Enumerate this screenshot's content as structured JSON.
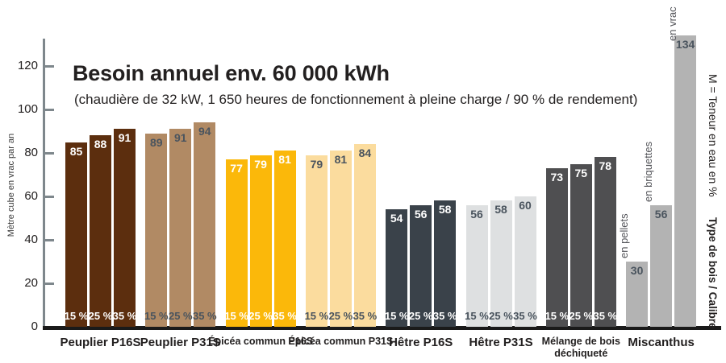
{
  "chart_data": {
    "type": "bar",
    "title": "Besoin annuel env. 60 000 kWh",
    "subtitle": "(chaudière de 32 kW, 1 650 heures de fonctionnement à pleine charge / 90 % de rendement)",
    "ylabel": "Mètre cube en vrac par an",
    "yticks": [
      0,
      20,
      40,
      60,
      80,
      100,
      120
    ],
    "ylim": [
      0,
      140
    ],
    "grid": false,
    "legend": "none",
    "moisture_series_labels": [
      "15 %",
      "25 %",
      "35 %"
    ],
    "groups": [
      {
        "label": "Peuplier P16S",
        "color": "#5C2E0E",
        "text_color": "#FFFFFF",
        "values": [
          85,
          88,
          91
        ],
        "bar_labels": [
          "15 %",
          "25 %",
          "35 %"
        ],
        "label_style": "bold"
      },
      {
        "label": "Peuplier P31S",
        "color": "#B18A64",
        "text_color": "#4A545E",
        "values": [
          89,
          91,
          94
        ],
        "bar_labels": [
          "15 %",
          "25 %",
          "35 %"
        ],
        "label_style": "bold"
      },
      {
        "label": "Épicéa commun P16S",
        "color": "#FBB80A",
        "text_color": "#FFFFFF",
        "values": [
          77,
          79,
          81
        ],
        "bar_labels": [
          "15 %",
          "25 %",
          "35 %"
        ],
        "label_style": "small"
      },
      {
        "label": "Épicéa commun P31S",
        "color": "#FBDC9E",
        "text_color": "#4A545E",
        "values": [
          79,
          81,
          84
        ],
        "bar_labels": [
          "15 %",
          "25 %",
          "35 %"
        ],
        "label_style": "small"
      },
      {
        "label": "Hêtre P16S",
        "color": "#3A424A",
        "text_color": "#FFFFFF",
        "values": [
          54,
          56,
          58
        ],
        "bar_labels": [
          "15 %",
          "25 %",
          "35 %"
        ],
        "label_style": "bold"
      },
      {
        "label": "Hêtre P31S",
        "color": "#DEE0E1",
        "text_color": "#4A545E",
        "values": [
          56,
          58,
          60
        ],
        "bar_labels": [
          "15 %",
          "25 %",
          "35 %"
        ],
        "label_style": "bold"
      },
      {
        "label": "Mélange de bois déchiqueté",
        "color": "#4F4F51",
        "text_color": "#FFFFFF",
        "values": [
          73,
          75,
          78
        ],
        "bar_labels": [
          "15 %",
          "25 %",
          "35 %"
        ],
        "label_style": "small wrap"
      },
      {
        "label": "Miscanthus",
        "color": "#B3B3B3",
        "text_color": "#4A545E",
        "values": [
          30,
          56,
          134
        ],
        "top_labels": [
          "en pellets",
          "en briquettes",
          "en vrac"
        ],
        "label_style": "bold"
      }
    ],
    "right_notes": {
      "moisture": "M = Teneur en eau en %",
      "type": "Type de bois / Calibre"
    }
  }
}
